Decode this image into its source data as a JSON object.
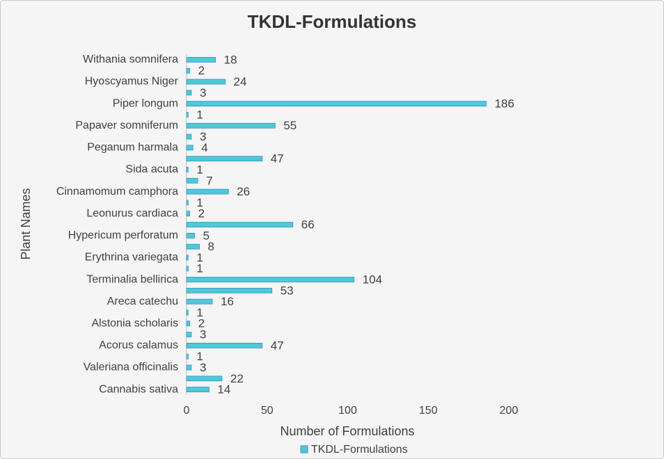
{
  "chart_data": {
    "type": "bar",
    "orientation": "horizontal",
    "title": "TKDL-Formulations",
    "x_label": "Number of Formulations",
    "y_label": "Plant Names",
    "categories": [
      "Withania somnifera",
      null,
      "Hyoscyamus Niger",
      null,
      "Piper longum",
      null,
      "Papaver somniferum",
      null,
      "Peganum harmala",
      null,
      "Sida acuta",
      null,
      "Cinnamomum camphora",
      null,
      "Leonurus cardiaca",
      null,
      "Hypericum perforatum",
      null,
      "Erythrina variegata",
      null,
      "Terminalia bellirica",
      null,
      "Areca catechu",
      null,
      "Alstonia scholaris",
      null,
      "Acorus calamus",
      null,
      "Valeriana officinalis",
      null,
      "Cannabis sativa"
    ],
    "series": [
      {
        "name": "TKDL-Formulations",
        "color": "#4ec9d6",
        "values": [
          18,
          2,
          24,
          3,
          186,
          1,
          55,
          3,
          4,
          47,
          1,
          7,
          26,
          1,
          2,
          66,
          5,
          8,
          1,
          1,
          104,
          53,
          16,
          1,
          2,
          3,
          47,
          1,
          3,
          22,
          14
        ]
      }
    ],
    "xlim": [
      0,
      200
    ],
    "xticks": [
      0,
      50,
      100,
      150,
      200
    ],
    "grid": false,
    "legend": "bottom"
  }
}
